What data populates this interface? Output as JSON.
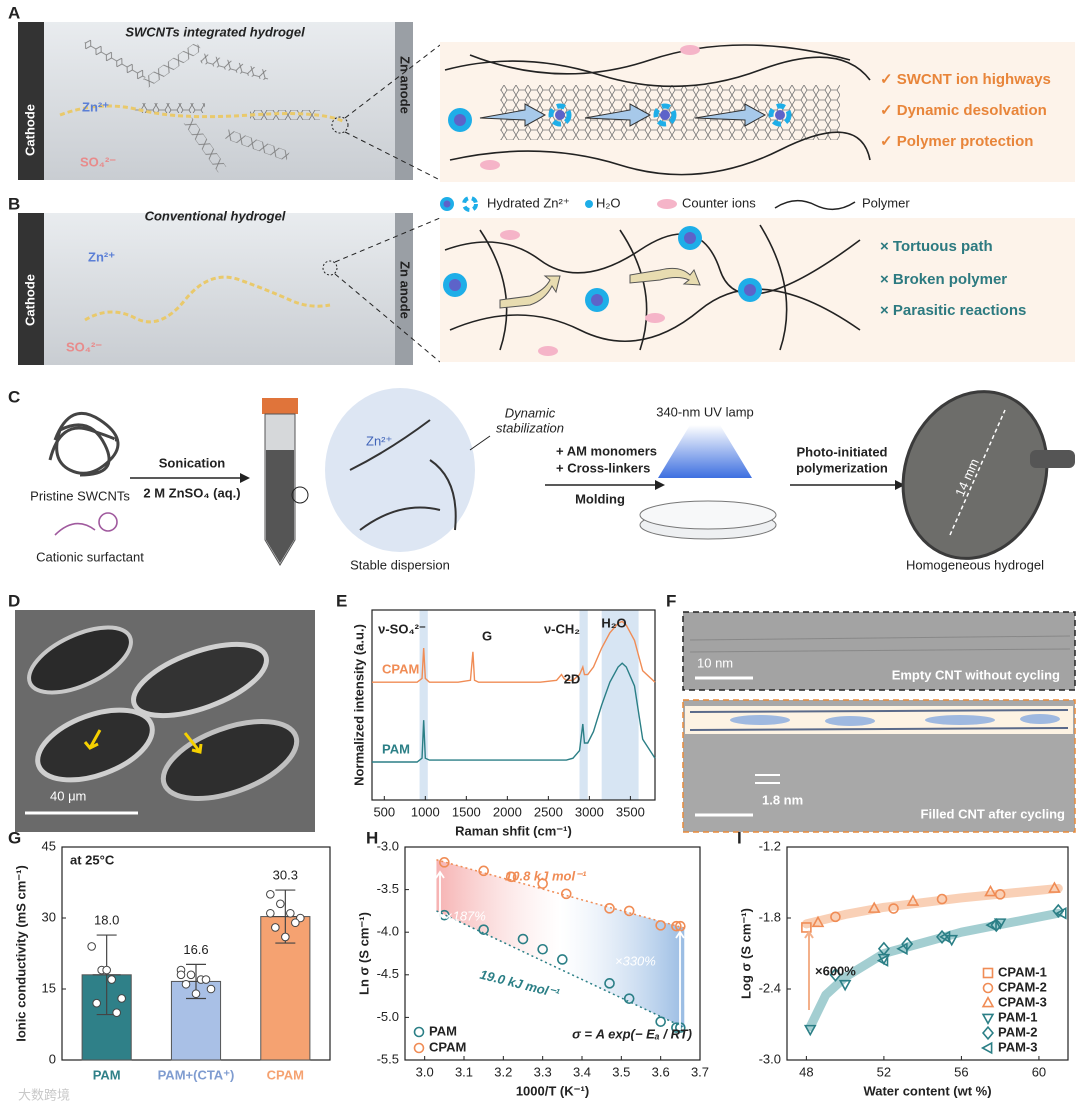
{
  "panel_a": {
    "label": "A",
    "title": "SWCNTs integrated hydrogel",
    "cathode": "Cathode",
    "anode": "Zn anode",
    "zn": "Zn²⁺",
    "so4": "SO₄²⁻",
    "features": [
      "✓ SWCNT ion highways",
      "✓ Dynamic desolvation",
      "✓ Polymer protection"
    ]
  },
  "legend": {
    "items": [
      "Hydrated Zn²⁺",
      "H₂O",
      "Counter ions",
      "Polymer"
    ]
  },
  "panel_b": {
    "label": "B",
    "title": "Conventional hydrogel",
    "cathode": "Cathode",
    "anode": "Zn anode",
    "zn": "Zn²⁺",
    "so4": "SO₄²⁻",
    "features": [
      "× Tortuous path",
      "× Broken polymer",
      "× Parasitic reactions"
    ]
  },
  "panel_c": {
    "label": "C",
    "swcnt": "Pristine SWCNTs",
    "surfactant": "Cationic surfactant",
    "step1_top": "Sonication",
    "step1_bottom": "2 M ZnSO₄ (aq.)",
    "zn": "Zn²⁺",
    "stabilization": [
      "Dynamic",
      "stabilization"
    ],
    "dispersion": "Stable dispersion",
    "step2_top": [
      "+ AM monomers",
      "+ Cross-linkers"
    ],
    "step2_bottom": "Molding",
    "lamp": "340-nm UV lamp",
    "step3_top": [
      "Photo-initiated",
      "polymerization"
    ],
    "size": "14 mm",
    "product": "Homogeneous hydrogel"
  },
  "panel_d": {
    "label": "D",
    "scale": "40 μm"
  },
  "panel_f": {
    "label": "F",
    "scale_top": "10 nm",
    "caption_top": "Empty CNT without cycling",
    "gap": "1.8 nm",
    "caption_bottom": "Filled CNT after cycling"
  },
  "watermark": "大数跨境",
  "chart_data": [
    {
      "type": "line",
      "label": "E",
      "xlabel": "Raman shfit (cm⁻¹)",
      "ylabel": "Normalized intensity (a.u.)",
      "annotations": [
        "ν-SO₄²⁻",
        "G",
        "2D",
        "ν-CH₂",
        "H₂O"
      ],
      "xlim": [
        350,
        3800
      ],
      "xticks": [
        500,
        1000,
        1500,
        2000,
        2500,
        3000,
        3500
      ],
      "ylim": [
        0,
        1
      ],
      "bands": [
        [
          930,
          1030
        ],
        [
          2880,
          2980
        ],
        [
          3150,
          3600
        ]
      ],
      "band_color": "#c9dcef",
      "x": [
        350,
        500,
        700,
        900,
        960,
        980,
        1000,
        1050,
        1200,
        1400,
        1550,
        1580,
        1600,
        1650,
        1800,
        2000,
        2200,
        2400,
        2600,
        2660,
        2690,
        2720,
        2800,
        2880,
        2920,
        2940,
        2980,
        3050,
        3150,
        3250,
        3350,
        3400,
        3450,
        3550,
        3650,
        3800
      ],
      "series": [
        {
          "name": "CPAM",
          "color": "#f08c55",
          "values": [
            0.62,
            0.62,
            0.62,
            0.62,
            0.64,
            0.8,
            0.64,
            0.62,
            0.62,
            0.62,
            0.63,
            0.78,
            0.63,
            0.62,
            0.62,
            0.62,
            0.62,
            0.62,
            0.63,
            0.66,
            0.64,
            0.63,
            0.63,
            0.66,
            0.7,
            0.66,
            0.66,
            0.7,
            0.8,
            0.88,
            0.93,
            0.94,
            0.92,
            0.84,
            0.68,
            0.62
          ]
        },
        {
          "name": "PAM",
          "color": "#2b7f86",
          "values": [
            0.2,
            0.2,
            0.2,
            0.2,
            0.22,
            0.42,
            0.22,
            0.21,
            0.21,
            0.21,
            0.21,
            0.21,
            0.21,
            0.21,
            0.21,
            0.21,
            0.21,
            0.21,
            0.21,
            0.21,
            0.21,
            0.21,
            0.22,
            0.26,
            0.4,
            0.3,
            0.3,
            0.36,
            0.5,
            0.62,
            0.7,
            0.72,
            0.7,
            0.6,
            0.32,
            0.22
          ]
        }
      ]
    },
    {
      "type": "bar",
      "label": "G",
      "ylabel": "Ionic conductivity (mS cm⁻¹)",
      "annotation": "at 25°C",
      "categories": [
        "PAM",
        "PAM+(CTA⁺)",
        "CPAM"
      ],
      "values": [
        18.0,
        16.6,
        30.3
      ],
      "value_labels": [
        "18.0",
        "16.6",
        "30.3"
      ],
      "errors": [
        8.4,
        3.6,
        5.6
      ],
      "colors": [
        "#2f8088",
        "#a9c0e6",
        "#f5a271"
      ],
      "points": [
        [
          24,
          19,
          17,
          13,
          12,
          19,
          10
        ],
        [
          19,
          18,
          17,
          15,
          16,
          14,
          17,
          18
        ],
        [
          35,
          33,
          31,
          30,
          28,
          26,
          29,
          31
        ]
      ],
      "ylim": [
        0,
        45
      ],
      "yticks": [
        0,
        15,
        30,
        45
      ]
    },
    {
      "type": "scatter",
      "label": "H",
      "xlabel": "1000/T (K⁻¹)",
      "ylabel": "Ln σ (S cm⁻¹)",
      "energies": [
        "10.8 kJ mol⁻¹",
        "19.0 kJ mol⁻¹"
      ],
      "ratios": [
        "×187%",
        "×330%"
      ],
      "equation": "σ = A exp(− Eₐ / RT)",
      "xlim": [
        2.95,
        3.7
      ],
      "xticks": [
        {
          "value": 3,
          "label": "3.0"
        },
        3.1,
        3.2,
        3.3,
        3.4,
        3.5,
        3.6,
        3.7
      ],
      "ylim": [
        -5.5,
        -3
      ],
      "yticks": [
        -5.5,
        {
          "value": -5,
          "label": "-5.0"
        },
        -4.5,
        {
          "value": -4,
          "label": "-4.0"
        },
        -3.5,
        {
          "value": -3,
          "label": "-3.0"
        }
      ],
      "legend": "lower left",
      "series": [
        {
          "name": "PAM",
          "color": "#2b7f86",
          "marker": "circle",
          "x": [
            3.05,
            3.15,
            3.25,
            3.3,
            3.35,
            3.47,
            3.52,
            3.6,
            3.64,
            3.65
          ],
          "values": [
            -3.8,
            -3.97,
            -4.08,
            -4.2,
            -4.32,
            -4.6,
            -4.78,
            -5.05,
            -5.12,
            -5.12
          ],
          "fit": {
            "x": [
              3.03,
              3.66
            ],
            "values": [
              -3.75,
              -5.12
            ]
          }
        },
        {
          "name": "CPAM",
          "color": "#f08c55",
          "marker": "circle",
          "x": [
            3.05,
            3.15,
            3.22,
            3.3,
            3.36,
            3.47,
            3.52,
            3.6,
            3.64,
            3.65
          ],
          "values": [
            -3.18,
            -3.28,
            -3.35,
            -3.43,
            -3.55,
            -3.72,
            -3.75,
            -3.92,
            -3.93,
            -3.93
          ],
          "fit": {
            "x": [
              3.03,
              3.66
            ],
            "values": [
              -3.15,
              -3.95
            ]
          }
        }
      ]
    },
    {
      "type": "scatter",
      "label": "I",
      "xlabel": "Water content (wt %)",
      "ylabel": "Log σ (S cm⁻¹)",
      "annotation": "×600%",
      "xlim": [
        47,
        61.5
      ],
      "xticks": [
        48,
        52,
        56,
        60
      ],
      "ylim": [
        -3,
        -1.2
      ],
      "yticks": [
        {
          "value": -3,
          "label": "-3.0"
        },
        -2.4,
        -1.8,
        -1.2
      ],
      "legend": "lower right",
      "trends": [
        {
          "color": "#f7c4a4",
          "x": [
            48,
            50,
            52,
            56,
            61
          ],
          "values": [
            -1.85,
            -1.77,
            -1.71,
            -1.63,
            -1.55
          ]
        },
        {
          "color": "#8cc2c6",
          "x": [
            48.2,
            49,
            50,
            52,
            56,
            61
          ],
          "values": [
            -2.72,
            -2.45,
            -2.3,
            -2.1,
            -1.92,
            -1.76
          ]
        }
      ],
      "series": [
        {
          "name": "CPAM-1",
          "color": "#f08c55",
          "marker": "square",
          "x": [
            48
          ],
          "values": [
            -1.88
          ]
        },
        {
          "name": "CPAM-2",
          "color": "#f08c55",
          "marker": "circle",
          "x": [
            49.5,
            52.5,
            55,
            58
          ],
          "values": [
            -1.79,
            -1.72,
            -1.64,
            -1.6
          ]
        },
        {
          "name": "CPAM-3",
          "color": "#f08c55",
          "marker": "triangle",
          "x": [
            48.6,
            51.5,
            53.5,
            57.5,
            60.8
          ],
          "values": [
            -1.84,
            -1.72,
            -1.66,
            -1.58,
            -1.55
          ]
        },
        {
          "name": "PAM-1",
          "color": "#2b7f86",
          "marker": "triangle-down",
          "x": [
            48.2,
            50,
            52,
            55.5,
            58
          ],
          "values": [
            -2.74,
            -2.36,
            -2.14,
            -1.98,
            -1.84
          ]
        },
        {
          "name": "PAM-2",
          "color": "#2b7f86",
          "marker": "diamond",
          "x": [
            49.5,
            52,
            53.2,
            55,
            57.8,
            61
          ],
          "values": [
            -2.28,
            -2.06,
            -2.02,
            -1.96,
            -1.86,
            -1.74
          ]
        },
        {
          "name": "PAM-3",
          "color": "#2b7f86",
          "marker": "triangle-left",
          "x": [
            52,
            53,
            55.2,
            57.6,
            61.2
          ],
          "values": [
            -2.16,
            -2.06,
            -1.96,
            -1.86,
            -1.76
          ]
        }
      ]
    }
  ]
}
